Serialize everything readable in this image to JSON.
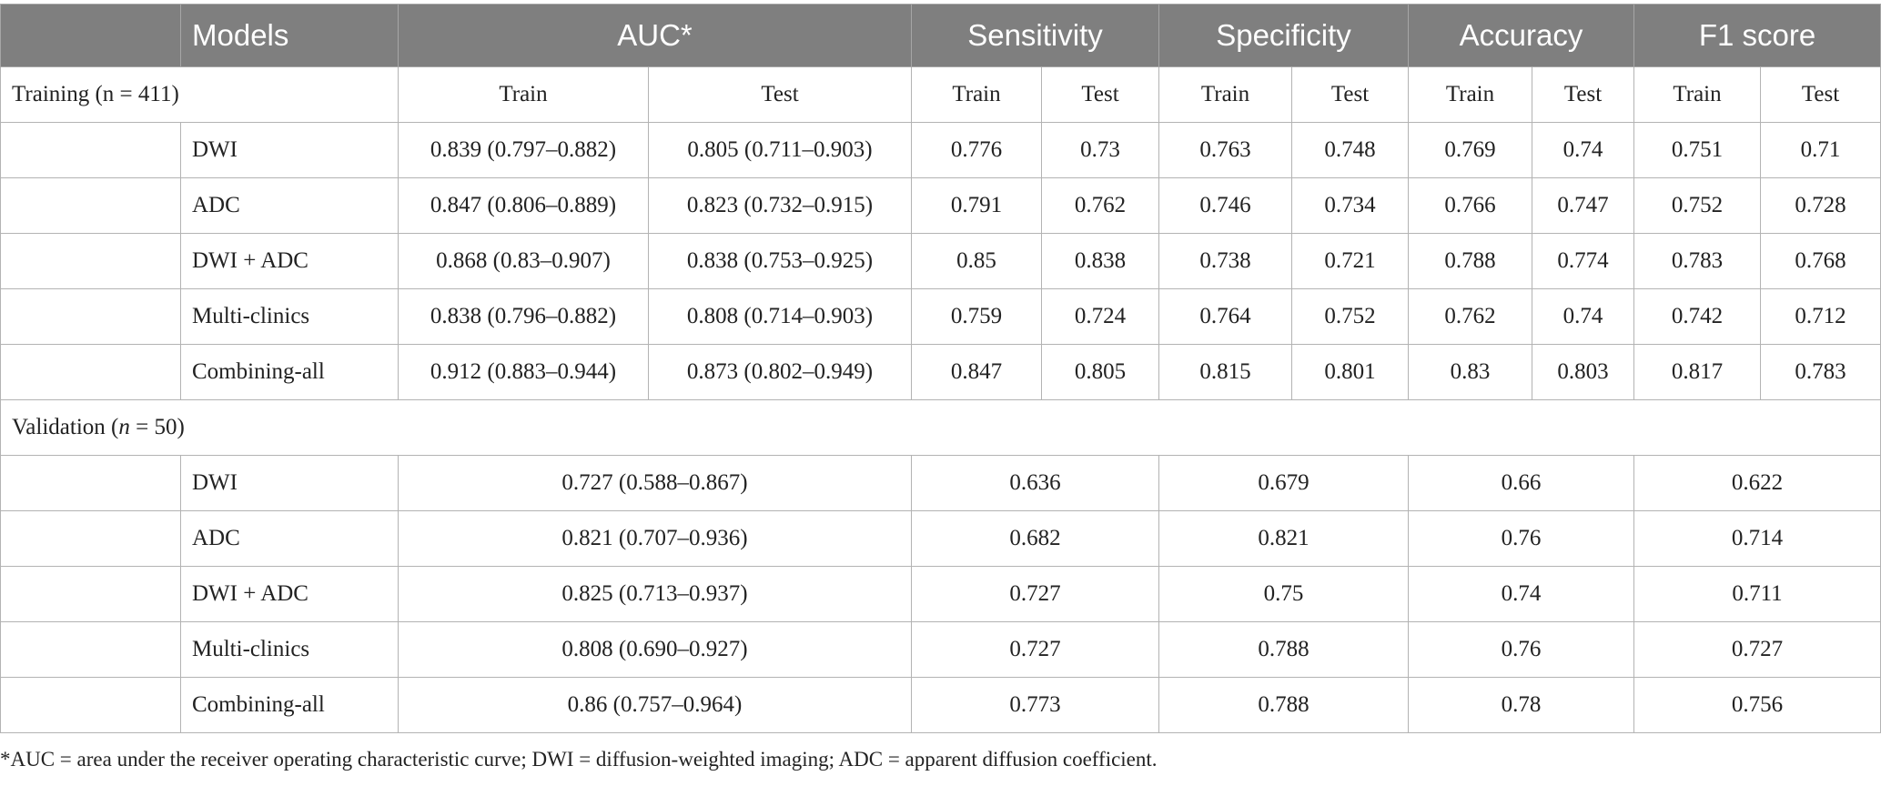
{
  "headers": {
    "models": "Models",
    "auc": "AUC*",
    "sensitivity": "Sensitivity",
    "specificity": "Specificity",
    "accuracy": "Accuracy",
    "f1": "F1 score"
  },
  "sub": {
    "train": "Train",
    "test": "Test"
  },
  "training": {
    "label": "Training (n = 411)",
    "rows": [
      {
        "model": "DWI",
        "auc_train": "0.839 (0.797–0.882)",
        "auc_test": "0.805 (0.711–0.903)",
        "sens_train": "0.776",
        "sens_test": "0.73",
        "spec_train": "0.763",
        "spec_test": "0.748",
        "acc_train": "0.769",
        "acc_test": "0.74",
        "f1_train": "0.751",
        "f1_test": "0.71"
      },
      {
        "model": "ADC",
        "auc_train": "0.847 (0.806–0.889)",
        "auc_test": "0.823 (0.732–0.915)",
        "sens_train": "0.791",
        "sens_test": "0.762",
        "spec_train": "0.746",
        "spec_test": "0.734",
        "acc_train": "0.766",
        "acc_test": "0.747",
        "f1_train": "0.752",
        "f1_test": "0.728"
      },
      {
        "model": "DWI + ADC",
        "auc_train": "0.868 (0.83–0.907)",
        "auc_test": "0.838 (0.753–0.925)",
        "sens_train": "0.85",
        "sens_test": "0.838",
        "spec_train": "0.738",
        "spec_test": "0.721",
        "acc_train": "0.788",
        "acc_test": "0.774",
        "f1_train": "0.783",
        "f1_test": "0.768"
      },
      {
        "model": "Multi-clinics",
        "auc_train": "0.838 (0.796–0.882)",
        "auc_test": "0.808 (0.714–0.903)",
        "sens_train": "0.759",
        "sens_test": "0.724",
        "spec_train": "0.764",
        "spec_test": "0.752",
        "acc_train": "0.762",
        "acc_test": "0.74",
        "f1_train": "0.742",
        "f1_test": "0.712"
      },
      {
        "model": "Combining-all",
        "auc_train": "0.912 (0.883–0.944)",
        "auc_test": "0.873 (0.802–0.949)",
        "sens_train": "0.847",
        "sens_test": "0.805",
        "spec_train": "0.815",
        "spec_test": "0.801",
        "acc_train": "0.83",
        "acc_test": "0.803",
        "f1_train": "0.817",
        "f1_test": "0.783"
      }
    ]
  },
  "validation": {
    "label_prefix": "Validation (",
    "label_n": "n",
    "label_suffix": " = 50)",
    "rows": [
      {
        "model": "DWI",
        "auc": "0.727 (0.588–0.867)",
        "sens": "0.636",
        "spec": "0.679",
        "acc": "0.66",
        "f1": "0.622"
      },
      {
        "model": "ADC",
        "auc": "0.821 (0.707–0.936)",
        "sens": "0.682",
        "spec": "0.821",
        "acc": "0.76",
        "f1": "0.714"
      },
      {
        "model": "DWI + ADC",
        "auc": "0.825 (0.713–0.937)",
        "sens": "0.727",
        "spec": "0.75",
        "acc": "0.74",
        "f1": "0.711"
      },
      {
        "model": "Multi-clinics",
        "auc": "0.808 (0.690–0.927)",
        "sens": "0.727",
        "spec": "0.788",
        "acc": "0.76",
        "f1": "0.727"
      },
      {
        "model": "Combining-all",
        "auc": "0.86 (0.757–0.964)",
        "sens": "0.773",
        "spec": "0.788",
        "acc": "0.78",
        "f1": "0.756"
      }
    ]
  },
  "footnote": "*AUC = area under the receiver operating characteristic curve; DWI = diffusion-weighted imaging; ADC = apparent diffusion coefficient."
}
